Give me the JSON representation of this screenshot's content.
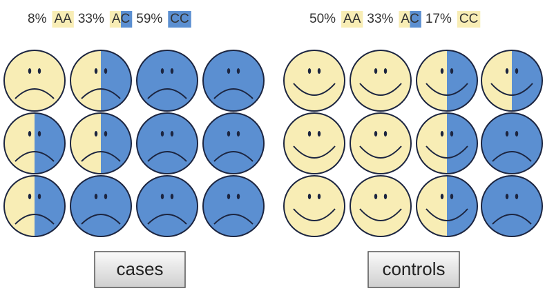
{
  "panels": [
    {
      "legend": [
        {
          "percent": "8%",
          "genotype": "AA"
        },
        {
          "percent": "33%",
          "genotype": "AC"
        },
        {
          "percent": "59%",
          "genotype": "CC"
        }
      ],
      "label": "cases"
    },
    {
      "legend": [
        {
          "percent": "50%",
          "genotype": "AA"
        },
        {
          "percent": "33%",
          "genotype": "AC"
        },
        {
          "percent": "17%",
          "genotype": "CC"
        }
      ],
      "label": "controls"
    }
  ]
}
